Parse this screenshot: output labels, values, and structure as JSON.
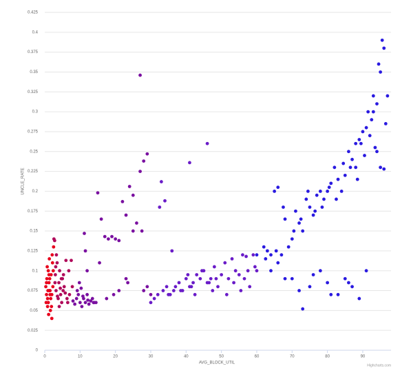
{
  "chart_data": {
    "type": "scatter",
    "x_label": "AVG_BLOCK_UTIL",
    "y_label": "UNCLE_RATE",
    "credits": "Highcharts.com",
    "xlim": [
      0,
      98
    ],
    "xticks": [
      0,
      10,
      20,
      30,
      40,
      50,
      60,
      70,
      80,
      90
    ],
    "ylim": [
      0,
      0.425
    ],
    "yticks": [
      0,
      0.025,
      0.05,
      0.075,
      0.1,
      0.125,
      0.15,
      0.175,
      0.2,
      0.225,
      0.25,
      0.275,
      0.3,
      0.325,
      0.35,
      0.375,
      0.4,
      0.425
    ],
    "grid": true,
    "series": [
      {
        "color": "#e8001c",
        "x": [
          0.3,
          0.5,
          0.6,
          0.8,
          1,
          1,
          1.2,
          1.3,
          1.5,
          1.6,
          1.8,
          2,
          2,
          2.2,
          2.5,
          0.4,
          0.7,
          1.1,
          1.4,
          1.9,
          2.3,
          0.9,
          1.7,
          2.1,
          0.5,
          1.2,
          1.5,
          2.4,
          0.8,
          1.3
        ],
        "values": [
          0.08,
          0.07,
          0.09,
          0.065,
          0.1,
          0.06,
          0.085,
          0.115,
          0.075,
          0.05,
          0.095,
          0.07,
          0.04,
          0.11,
          0.13,
          0.06,
          0.105,
          0.045,
          0.09,
          0.055,
          0.08,
          0.075,
          0.065,
          0.12,
          0.085,
          0.095,
          0.07,
          0.1,
          0.055,
          0.075
        ]
      },
      {
        "color": "#b00a5a",
        "x": [
          2.6,
          2.8,
          3,
          3.2,
          3.5,
          3.8,
          4,
          4.2,
          4.5,
          4.8,
          5,
          5.2,
          5.5,
          6,
          6.3,
          6.8,
          7,
          7.5,
          3.3,
          4.1,
          5.3,
          2.9,
          3.6,
          4.4,
          5.8,
          6.5,
          7.8,
          3.1,
          4.7
        ],
        "values": [
          0.14,
          0.138,
          0.095,
          0.075,
          0.11,
          0.065,
          0.085,
          0.1,
          0.07,
          0.06,
          0.09,
          0.075,
          0.08,
          0.113,
          0.065,
          0.1,
          0.07,
          0.113,
          0.12,
          0.055,
          0.095,
          0.085,
          0.068,
          0.078,
          0.072,
          0.06,
          0.08,
          0.105,
          0.09
        ]
      },
      {
        "color": "#7a10a0",
        "x": [
          8,
          8.5,
          9,
          9.5,
          10,
          10.5,
          11,
          11.5,
          12,
          12.5,
          13,
          13.5,
          14,
          9.2,
          10.8,
          12.2,
          11.2,
          13.8,
          15,
          16,
          17,
          18,
          19,
          20,
          21,
          22,
          23,
          24,
          25,
          27,
          28,
          29,
          11.5,
          12,
          15.5,
          17.5,
          19.5,
          21,
          23,
          23.5,
          25,
          26,
          27,
          27.5,
          28,
          29,
          30,
          9.8,
          10.3,
          14.5
        ],
        "values": [
          0.062,
          0.058,
          0.065,
          0.07,
          0.06,
          0.055,
          0.065,
          0.06,
          0.07,
          0.058,
          0.062,
          0.065,
          0.06,
          0.075,
          0.068,
          0.063,
          0.147,
          0.06,
          0.198,
          0.165,
          0.143,
          0.14,
          0.143,
          0.14,
          0.138,
          0.187,
          0.17,
          0.206,
          0.15,
          0.225,
          0.238,
          0.247,
          0.125,
          0.1,
          0.11,
          0.065,
          0.07,
          0.075,
          0.09,
          0.085,
          0.195,
          0.16,
          0.346,
          0.15,
          0.075,
          0.08,
          0.07,
          0.085,
          0.078,
          0.06
        ]
      },
      {
        "color": "#6a1cc8",
        "x": [
          30,
          31,
          32,
          33,
          33.5,
          34,
          35,
          36,
          37,
          38,
          39,
          40,
          41,
          42,
          43,
          44,
          45,
          46,
          47,
          48,
          49,
          50,
          51,
          52,
          53,
          54,
          55,
          56,
          57,
          58,
          59,
          60,
          32.5,
          34.5,
          35.5,
          38.5,
          41.5,
          44.5,
          46.5,
          48.5,
          51.5,
          55.5,
          57.5,
          59.5,
          36.5,
          40.5,
          42.5,
          47.5,
          53.5,
          56.5,
          41,
          46
        ],
        "values": [
          0.06,
          0.065,
          0.07,
          0.212,
          0.075,
          0.188,
          0.07,
          0.125,
          0.08,
          0.085,
          0.075,
          0.09,
          0.08,
          0.085,
          0.095,
          0.09,
          0.1,
          0.085,
          0.09,
          0.105,
          0.08,
          0.095,
          0.11,
          0.09,
          0.115,
          0.1,
          0.095,
          0.12,
          0.118,
          0.08,
          0.12,
          0.1,
          0.18,
          0.08,
          0.07,
          0.075,
          0.08,
          0.1,
          0.085,
          0.09,
          0.07,
          0.075,
          0.1,
          0.105,
          0.075,
          0.095,
          0.07,
          0.075,
          0.085,
          0.09,
          0.236,
          0.26
        ]
      },
      {
        "color": "#2a1ae0",
        "x": [
          60,
          62,
          63,
          64,
          65,
          66,
          67,
          68,
          69,
          70,
          71,
          72,
          73,
          74,
          75,
          76,
          77,
          78,
          79,
          80,
          81,
          82,
          83,
          84,
          85,
          86,
          87,
          88,
          89,
          90,
          91,
          92,
          93,
          94,
          95,
          96,
          97,
          62.5,
          65.5,
          67.5,
          70.5,
          72.5,
          74.5,
          76.5,
          78.5,
          80.5,
          82.5,
          84.5,
          86.5,
          88.5,
          90.5,
          92.5,
          93.5,
          94.5,
          95.5,
          96.5,
          70,
          73,
          75,
          78,
          80,
          83,
          85,
          87,
          89,
          72,
          76,
          81,
          86,
          91,
          64,
          66,
          68,
          91.5,
          93,
          94,
          95,
          96,
          89.5,
          88
        ],
        "values": [
          0.12,
          0.13,
          0.125,
          0.12,
          0.2,
          0.205,
          0.12,
          0.165,
          0.13,
          0.14,
          0.175,
          0.16,
          0.15,
          0.19,
          0.18,
          0.17,
          0.195,
          0.2,
          0.19,
          0.2,
          0.21,
          0.23,
          0.215,
          0.2,
          0.22,
          0.25,
          0.24,
          0.26,
          0.265,
          0.275,
          0.28,
          0.27,
          0.3,
          0.31,
          0.35,
          0.38,
          0.32,
          0.115,
          0.125,
          0.18,
          0.15,
          0.165,
          0.2,
          0.175,
          0.18,
          0.205,
          0.19,
          0.235,
          0.23,
          0.215,
          0.245,
          0.29,
          0.255,
          0.36,
          0.39,
          0.285,
          0.09,
          0.052,
          0.08,
          0.1,
          0.085,
          0.07,
          0.09,
          0.08,
          0.065,
          0.075,
          0.095,
          0.07,
          0.085,
          0.1,
          0.1,
          0.11,
          0.09,
          0.3,
          0.32,
          0.25,
          0.23,
          0.228,
          0.26,
          0.23
        ]
      }
    ]
  }
}
